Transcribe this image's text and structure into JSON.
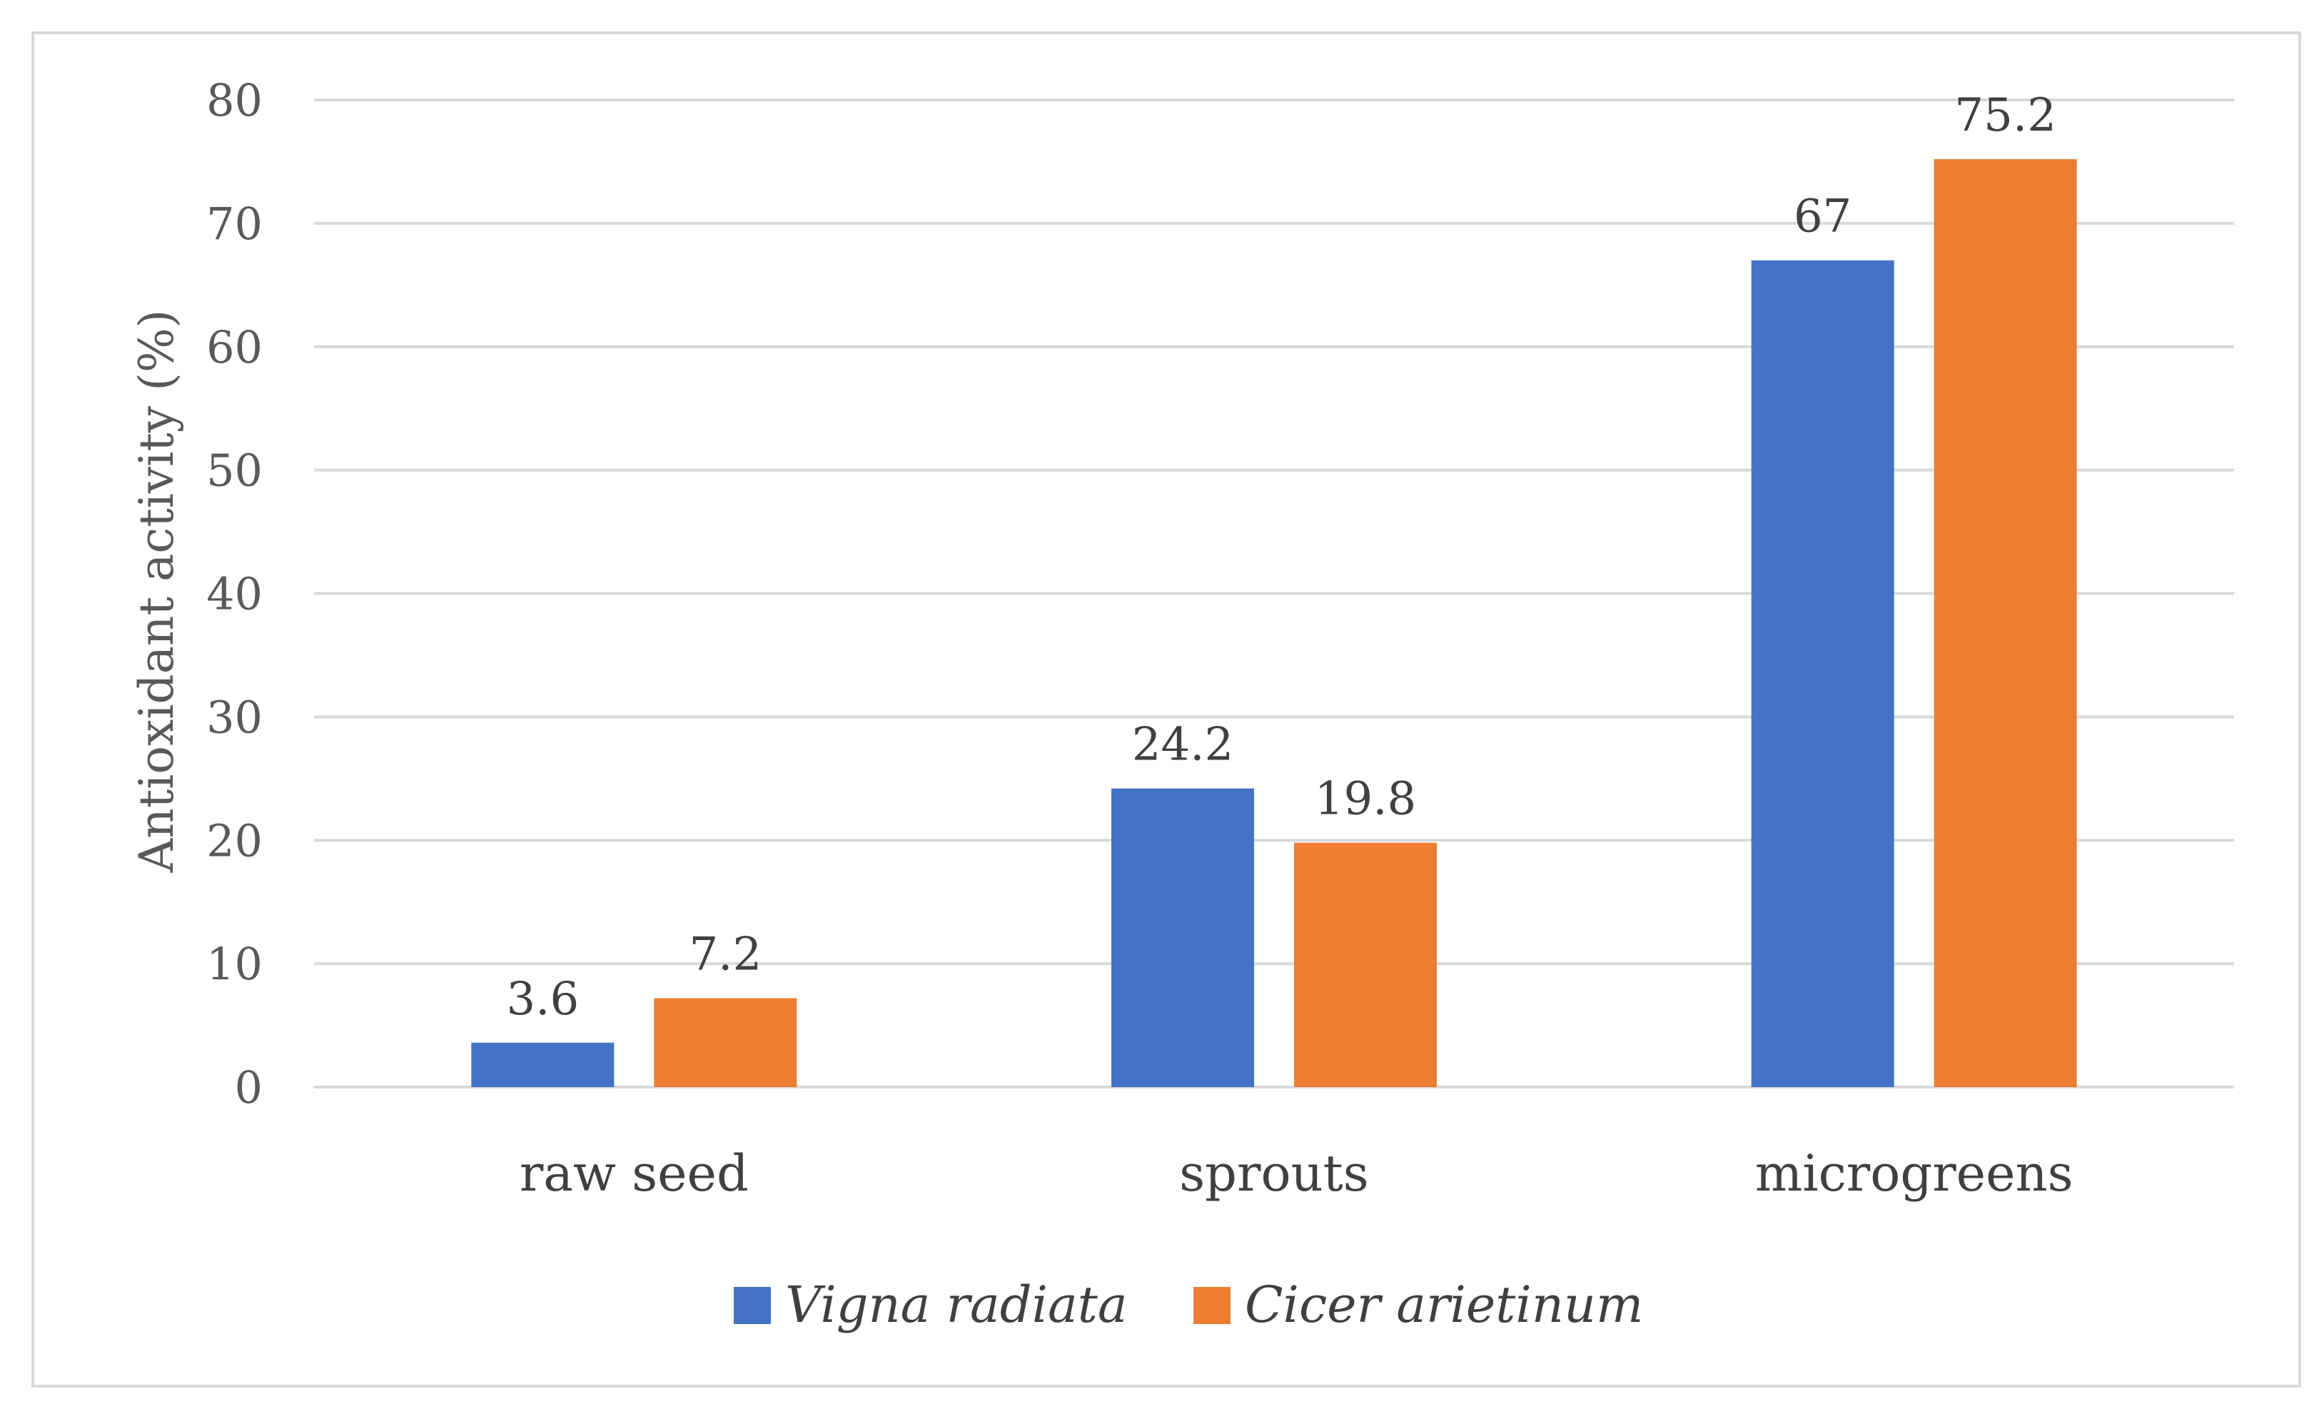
{
  "chart_data": {
    "type": "bar",
    "title": "",
    "xlabel": "",
    "ylabel": "Antioxidant activity (%)",
    "ylim": [
      0,
      80
    ],
    "yticks": [
      0,
      10,
      20,
      30,
      40,
      50,
      60,
      70,
      80
    ],
    "grid": true,
    "legend_position": "bottom",
    "categories": [
      "raw seed",
      "sprouts",
      "microgreens"
    ],
    "series": [
      {
        "name": "Vigna radiata",
        "values": [
          3.6,
          24.2,
          67
        ],
        "labels": [
          "3.6",
          "24.2",
          "67"
        ],
        "color": "#4472C4"
      },
      {
        "name": "Cicer arietinum",
        "values": [
          7.2,
          19.8,
          75.2
        ],
        "labels": [
          "7.2",
          "19.8",
          "75.2"
        ],
        "color": "#ED7D31"
      }
    ]
  }
}
